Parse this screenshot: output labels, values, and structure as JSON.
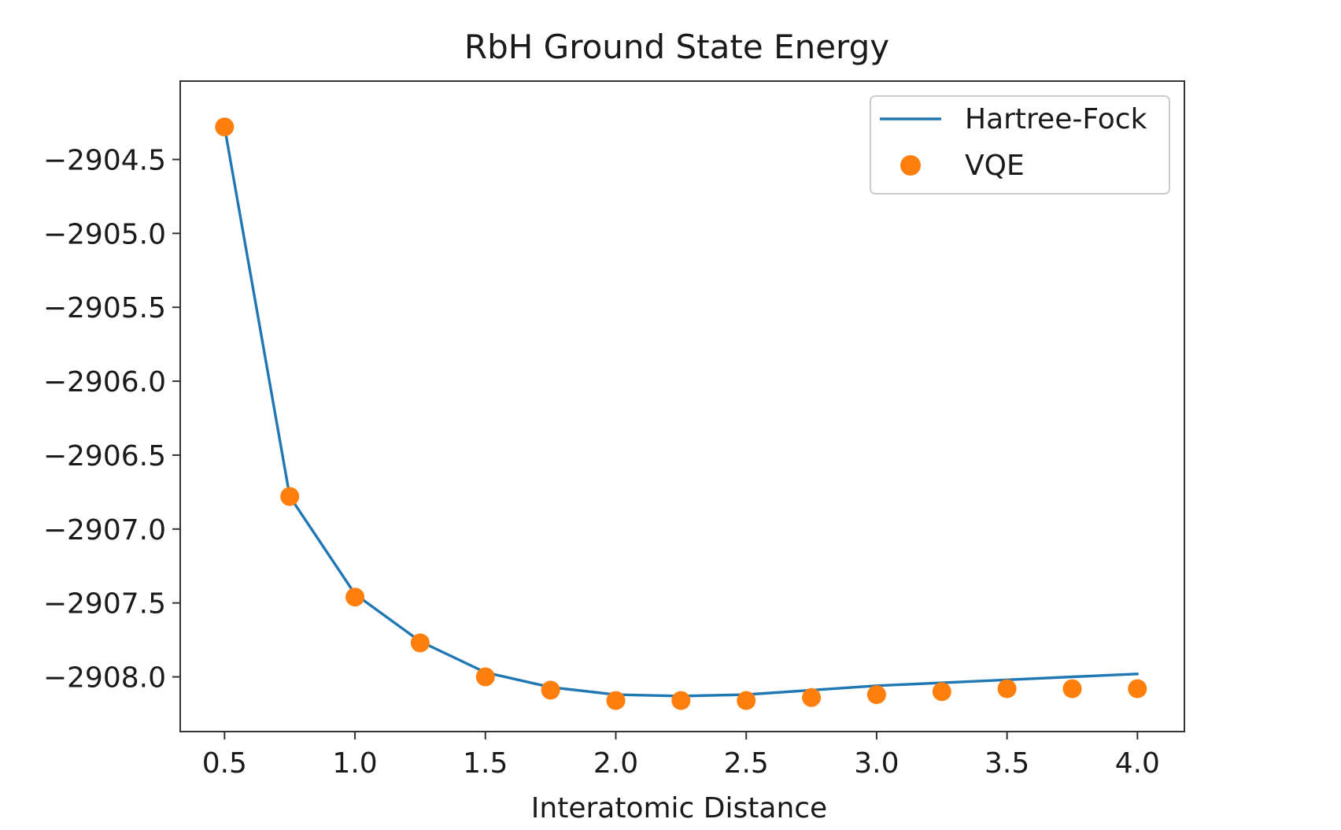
{
  "chart_data": {
    "type": "line",
    "title": "RbH Ground State Energy",
    "xlabel": "Interatomic Distance",
    "ylabel": "",
    "xlim": [
      0.33,
      4.18
    ],
    "ylim": [
      -2908.37,
      -2903.97
    ],
    "x": [
      0.5,
      0.75,
      1.0,
      1.25,
      1.5,
      1.75,
      2.0,
      2.25,
      2.5,
      2.75,
      3.0,
      3.25,
      3.5,
      3.75,
      4.0
    ],
    "xticks": [
      0.5,
      1.0,
      1.5,
      2.0,
      2.5,
      3.0,
      3.5,
      4.0
    ],
    "xtick_labels": [
      "0.5",
      "1.0",
      "1.5",
      "2.0",
      "2.5",
      "3.0",
      "3.5",
      "4.0"
    ],
    "yticks": [
      -2904.5,
      -2905.0,
      -2905.5,
      -2906.0,
      -2906.5,
      -2907.0,
      -2907.5,
      -2908.0
    ],
    "ytick_labels": [
      "−2904.5",
      "−2905.0",
      "−2905.5",
      "−2906.0",
      "−2906.5",
      "−2907.0",
      "−2907.5",
      "−2908.0"
    ],
    "grid": false,
    "legend_position": "upper right",
    "series": [
      {
        "name": "Hartree-Fock",
        "style": "line",
        "color": "#1f77b4",
        "values": [
          -2904.28,
          -2906.78,
          -2907.44,
          -2907.76,
          -2907.97,
          -2908.07,
          -2908.12,
          -2908.13,
          -2908.12,
          -2908.09,
          -2908.06,
          -2908.04,
          -2908.02,
          -2908.0,
          -2907.98
        ]
      },
      {
        "name": "VQE",
        "style": "markers",
        "color": "#ff7f0e",
        "values": [
          -2904.28,
          -2906.78,
          -2907.46,
          -2907.77,
          -2908.0,
          -2908.09,
          -2908.16,
          -2908.16,
          -2908.16,
          -2908.14,
          -2908.12,
          -2908.1,
          -2908.08,
          -2908.08,
          -2908.08
        ]
      }
    ]
  }
}
